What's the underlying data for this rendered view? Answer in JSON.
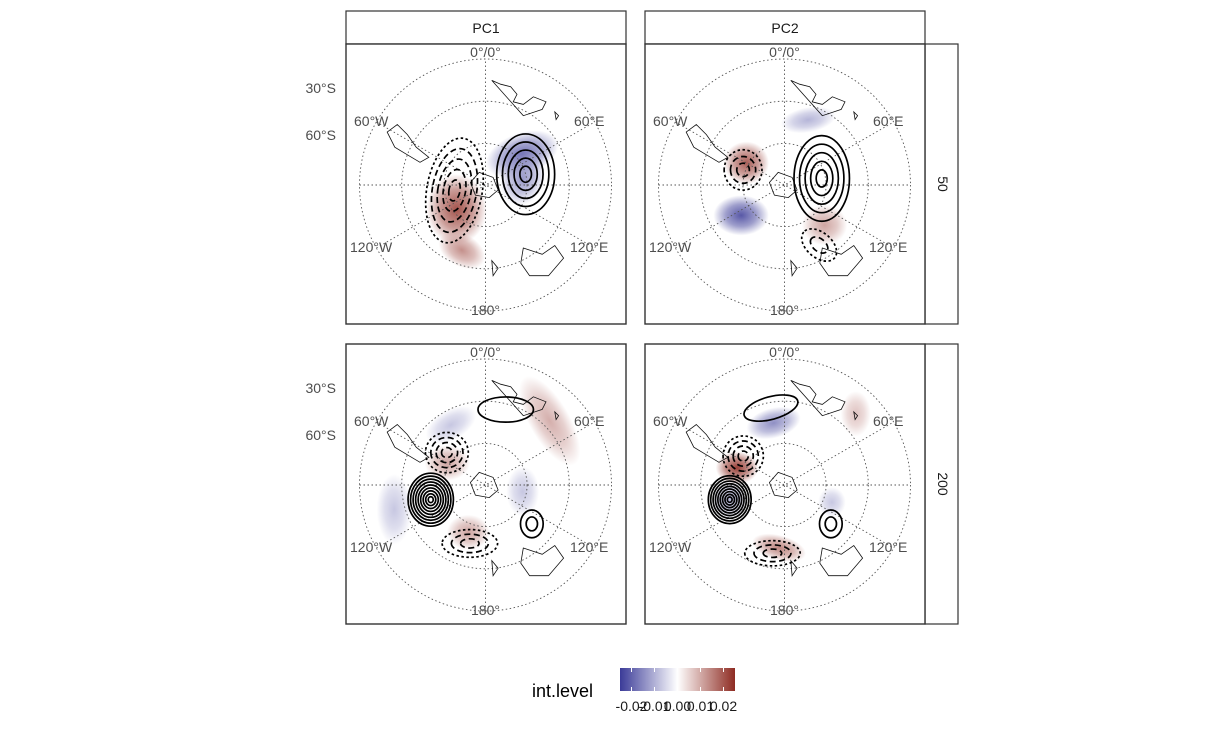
{
  "chart_data": {
    "type": "heatmap",
    "facets": {
      "columns": [
        "PC1",
        "PC2"
      ],
      "rows": [
        "50",
        "200"
      ]
    },
    "map_labels": {
      "top": "0°/0°",
      "lat_30": "30°S",
      "lat_60": "60°S",
      "lon_60w": "60°W",
      "lon_60e": "60°E",
      "lon_120w": "120°W",
      "lon_120e": "120°E",
      "lon_180": "180°"
    },
    "legend": {
      "title": "int.level",
      "ticks": [
        "-0.02",
        "-0.01",
        "0.00",
        "0.01",
        "0.02"
      ],
      "range": [
        -0.025,
        0.025
      ],
      "colors": {
        "low": "#3b3b98",
        "mid": "#ffffff",
        "high": "#8e2b22"
      }
    },
    "panels": [
      {
        "facet": "PC1 / 50",
        "fill": [
          {
            "sign": "neg",
            "strength": 0.75,
            "lon": 50,
            "r": 0.38,
            "sx": 0.3,
            "sy": 0.17,
            "rot": -20
          },
          {
            "sign": "neg",
            "strength": 0.55,
            "lon": 80,
            "r": 0.3,
            "sx": 0.17,
            "sy": 0.22,
            "rot": 20
          },
          {
            "sign": "pos",
            "strength": 0.85,
            "lon": 230,
            "r": 0.3,
            "sx": 0.24,
            "sy": 0.28,
            "rot": 0
          },
          {
            "sign": "pos",
            "strength": 0.55,
            "lon": 200,
            "r": 0.55,
            "sx": 0.2,
            "sy": 0.13,
            "rot": 30
          }
        ],
        "contours": [
          {
            "sign": "pos",
            "lon": 75,
            "r": 0.33,
            "sx": 0.23,
            "sy": 0.32,
            "rot": 0,
            "n": 5
          },
          {
            "sign": "neg",
            "lon": 260,
            "r": 0.25,
            "sx": 0.22,
            "sy": 0.42,
            "rot": 10,
            "n": 5
          }
        ]
      },
      {
        "facet": "PC2 / 50",
        "fill": [
          {
            "sign": "neg",
            "strength": 0.4,
            "lon": 20,
            "r": 0.55,
            "sx": 0.22,
            "sy": 0.1,
            "rot": -10
          },
          {
            "sign": "pos",
            "strength": 0.8,
            "lon": 300,
            "r": 0.35,
            "sx": 0.18,
            "sy": 0.17,
            "rot": 0
          },
          {
            "sign": "neg",
            "strength": 0.9,
            "lon": 235,
            "r": 0.42,
            "sx": 0.22,
            "sy": 0.16,
            "rot": 0
          },
          {
            "sign": "pos",
            "strength": 0.45,
            "lon": 135,
            "r": 0.45,
            "sx": 0.18,
            "sy": 0.16,
            "rot": 0
          }
        ],
        "contours": [
          {
            "sign": "pos",
            "lon": 80,
            "r": 0.3,
            "sx": 0.22,
            "sy": 0.34,
            "rot": 0,
            "n": 5
          },
          {
            "sign": "neg",
            "lon": 290,
            "r": 0.35,
            "sx": 0.15,
            "sy": 0.16,
            "rot": 0,
            "n": 3
          },
          {
            "sign": "neg",
            "lon": 150,
            "r": 0.55,
            "sx": 0.16,
            "sy": 0.1,
            "rot": 40,
            "n": 2
          }
        ]
      },
      {
        "facet": "PC1 / 200",
        "fill": [
          {
            "sign": "neg",
            "strength": 0.3,
            "lon": 330,
            "r": 0.55,
            "sx": 0.22,
            "sy": 0.12,
            "rot": -30
          },
          {
            "sign": "pos",
            "strength": 0.45,
            "lon": 300,
            "r": 0.35,
            "sx": 0.18,
            "sy": 0.14,
            "rot": 0
          },
          {
            "sign": "pos",
            "strength": 0.4,
            "lon": 45,
            "r": 0.72,
            "sx": 0.16,
            "sy": 0.4,
            "rot": -30
          },
          {
            "sign": "neg",
            "strength": 0.3,
            "lon": 255,
            "r": 0.75,
            "sx": 0.14,
            "sy": 0.28,
            "rot": 0
          },
          {
            "sign": "pos",
            "strength": 0.45,
            "lon": 200,
            "r": 0.4,
            "sx": 0.17,
            "sy": 0.14,
            "rot": 0
          },
          {
            "sign": "neg",
            "strength": 0.3,
            "lon": 100,
            "r": 0.3,
            "sx": 0.13,
            "sy": 0.2,
            "rot": 0
          }
        ],
        "contours": [
          {
            "sign": "pos",
            "lon": 255,
            "r": 0.45,
            "sx": 0.18,
            "sy": 0.21,
            "rot": 0,
            "n": 9
          },
          {
            "sign": "pos",
            "lon": 130,
            "r": 0.48,
            "sx": 0.09,
            "sy": 0.11,
            "rot": 0,
            "n": 2
          },
          {
            "sign": "pos",
            "lon": 15,
            "r": 0.62,
            "sx": 0.22,
            "sy": 0.1,
            "rot": 0,
            "n": 1
          },
          {
            "sign": "neg",
            "lon": 310,
            "r": 0.4,
            "sx": 0.17,
            "sy": 0.16,
            "rot": 0,
            "n": 4
          },
          {
            "sign": "neg",
            "lon": 195,
            "r": 0.48,
            "sx": 0.22,
            "sy": 0.11,
            "rot": 0,
            "n": 3
          }
        ]
      },
      {
        "facet": "PC2 / 200",
        "fill": [
          {
            "sign": "neg",
            "strength": 0.6,
            "lon": 350,
            "r": 0.5,
            "sx": 0.22,
            "sy": 0.12,
            "rot": -15
          },
          {
            "sign": "pos",
            "strength": 0.95,
            "lon": 290,
            "r": 0.4,
            "sx": 0.17,
            "sy": 0.13,
            "rot": 0
          },
          {
            "sign": "pos",
            "strength": 0.3,
            "lon": 45,
            "r": 0.8,
            "sx": 0.12,
            "sy": 0.18,
            "rot": 0
          },
          {
            "sign": "neg",
            "strength": 0.4,
            "lon": 255,
            "r": 0.45,
            "sx": 0.14,
            "sy": 0.15,
            "rot": 0
          },
          {
            "sign": "pos",
            "strength": 0.6,
            "lon": 185,
            "r": 0.5,
            "sx": 0.22,
            "sy": 0.1,
            "rot": 15
          },
          {
            "sign": "neg",
            "strength": 0.3,
            "lon": 110,
            "r": 0.4,
            "sx": 0.11,
            "sy": 0.12,
            "rot": 0
          }
        ],
        "contours": [
          {
            "sign": "pos",
            "lon": 255,
            "r": 0.45,
            "sx": 0.17,
            "sy": 0.19,
            "rot": 0,
            "n": 9
          },
          {
            "sign": "pos",
            "lon": 350,
            "r": 0.62,
            "sx": 0.22,
            "sy": 0.09,
            "rot": -15,
            "n": 1
          },
          {
            "sign": "pos",
            "lon": 130,
            "r": 0.48,
            "sx": 0.09,
            "sy": 0.11,
            "rot": 0,
            "n": 2
          },
          {
            "sign": "neg",
            "lon": 305,
            "r": 0.4,
            "sx": 0.16,
            "sy": 0.16,
            "rot": 0,
            "n": 4
          },
          {
            "sign": "neg",
            "lon": 190,
            "r": 0.55,
            "sx": 0.22,
            "sy": 0.1,
            "rot": 0,
            "n": 3
          }
        ]
      }
    ]
  }
}
